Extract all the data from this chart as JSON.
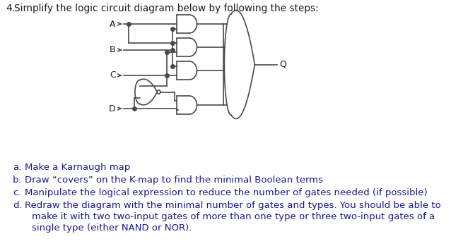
{
  "title": "4.   Simplify the logic circuit diagram below by following the steps:",
  "inputs": [
    "A",
    "B",
    "C",
    "D"
  ],
  "output_label": "Q",
  "bullets": [
    [
      "a.",
      "Make a Karnaugh map"
    ],
    [
      "b.",
      "Draw “covers” on the K-map to find the minimal Boolean terms"
    ],
    [
      "c.",
      "Manipulate the logical expression to reduce the number of gates needed (if possible)"
    ],
    [
      "d.",
      "Redraw the diagram with the minimal number of gates and types. You should be able to"
    ],
    [
      "",
      "make it with two two-input gates of more than one type or three two-input gates of a"
    ],
    [
      "",
      "single type (either NAND or NOR)."
    ]
  ],
  "bg_color": "#ffffff",
  "lc": "#4a4a4a",
  "text_color": "#1a1a8c",
  "circuit_text_color": "#1a1a1a"
}
